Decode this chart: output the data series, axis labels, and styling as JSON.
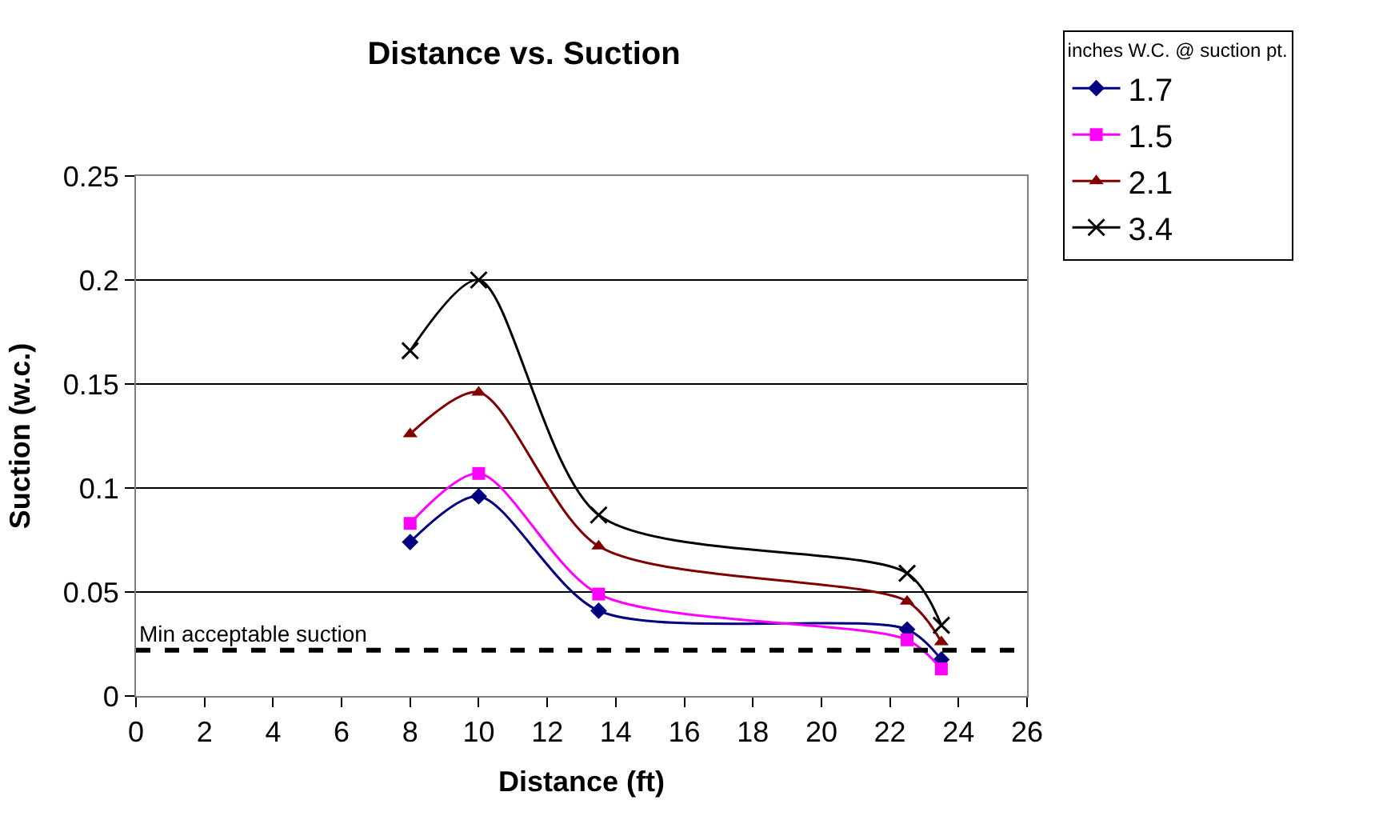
{
  "chart_data": {
    "type": "line",
    "title": "Distance vs. Suction",
    "xlabel": "Distance (ft)",
    "ylabel": "Suction (w.c.)",
    "legend_title": "inches W.C. @ suction pt.",
    "x": [
      8,
      10,
      13.5,
      22.5,
      23.5
    ],
    "series": [
      {
        "name": "1.7",
        "color": "#000080",
        "marker": "diamond",
        "values": [
          0.074,
          0.096,
          0.041,
          0.032,
          0.0175
        ]
      },
      {
        "name": "1.5",
        "color": "#ff00ff",
        "marker": "square",
        "values": [
          0.083,
          0.107,
          0.049,
          0.027,
          0.013
        ]
      },
      {
        "name": "2.1",
        "color": "#800000",
        "marker": "triangle",
        "values": [
          0.126,
          0.146,
          0.072,
          0.0455,
          0.026
        ]
      },
      {
        "name": "3.4",
        "color": "#000000",
        "marker": "cross",
        "values": [
          0.166,
          0.2,
          0.087,
          0.059,
          0.034
        ]
      }
    ],
    "xlim": [
      0,
      26
    ],
    "xticks": [
      0,
      2,
      4,
      6,
      8,
      10,
      12,
      14,
      16,
      18,
      20,
      22,
      24,
      26
    ],
    "ylim": [
      0,
      0.25
    ],
    "yticks": [
      0,
      0.05,
      0.1,
      0.15,
      0.2,
      0.25
    ],
    "ref_lines": [
      {
        "axis": "y",
        "value": 0.022,
        "label": "Min acceptable suction",
        "color": "#000000",
        "line_style": "dashed"
      }
    ],
    "grid": "y",
    "legend": "top right"
  }
}
